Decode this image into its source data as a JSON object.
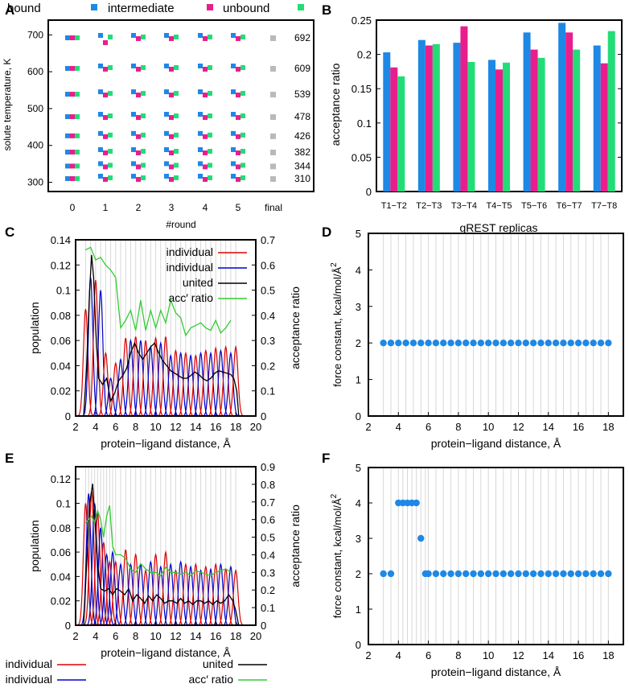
{
  "colors": {
    "blue": "#1e88e5",
    "magenta": "#e91e8c",
    "green": "#22dd77",
    "gray": "#b9b9b9",
    "red": "#dd0000",
    "darkblue": "#0000cc",
    "black": "#000000",
    "accgreen": "#33cc33",
    "grid": "#d7d7d7"
  },
  "chart_data": [
    {
      "panel": "A",
      "type": "scatter",
      "title": "",
      "legend": [
        "bound",
        "intermediate",
        "unbound"
      ],
      "xlabel": "#round",
      "ylabel": "solute temperature, K",
      "xticks": [
        "0",
        "1",
        "2",
        "3",
        "4",
        "5",
        "final"
      ],
      "yticks": [
        "300",
        "400",
        "500",
        "600",
        "700"
      ],
      "ylim": [
        275,
        740
      ],
      "temperatures": [
        310,
        344,
        382,
        426,
        478,
        539,
        609,
        692
      ],
      "final_labels": [
        "692",
        "609",
        "539",
        "478",
        "426",
        "382",
        "344",
        "310"
      ]
    },
    {
      "panel": "B",
      "type": "bar",
      "title": "",
      "categories": [
        "T1−T2",
        "T2−T3",
        "T3−T4",
        "T4−T5",
        "T5−T6",
        "T6−T7",
        "T7−T8"
      ],
      "series": [
        {
          "name": "bound",
          "values": [
            0.203,
            0.221,
            0.217,
            0.192,
            0.232,
            0.246,
            0.213
          ]
        },
        {
          "name": "intermediate",
          "values": [
            0.181,
            0.213,
            0.241,
            0.178,
            0.207,
            0.232,
            0.187
          ]
        },
        {
          "name": "unbound",
          "values": [
            0.168,
            0.215,
            0.189,
            0.188,
            0.195,
            0.207,
            0.234
          ]
        }
      ],
      "xlabel": "gREST replicas",
      "ylabel": "acceptance ratio",
      "ylim": [
        0,
        0.25
      ],
      "yticks": [
        "0",
        "0.05",
        "0.1",
        "0.15",
        "0.2",
        "0.25"
      ]
    },
    {
      "panel": "C",
      "type": "line",
      "xlabel": "protein−ligand distance, Å",
      "ylabel": "population",
      "y2label": "acceptance ratio",
      "xlim": [
        2,
        20
      ],
      "ylim": [
        0,
        0.14
      ],
      "y2lim": [
        0,
        0.7
      ],
      "xticks": [
        "2",
        "4",
        "6",
        "8",
        "10",
        "12",
        "14",
        "16",
        "18",
        "20"
      ],
      "yticks": [
        "0",
        "0.02",
        "0.04",
        "0.06",
        "0.08",
        "0.1",
        "0.12",
        "0.14"
      ],
      "y2ticks": [
        "0",
        "0.1",
        "0.2",
        "0.3",
        "0.4",
        "0.5",
        "0.6",
        "0.7"
      ],
      "legend": [
        "individual",
        "individual",
        "united",
        "acc′ ratio"
      ],
      "windows": [
        3.0,
        3.5,
        4.0,
        4.5,
        5.0,
        5.5,
        6.0,
        6.5,
        7.0,
        7.5,
        8.0,
        8.5,
        9.0,
        9.5,
        10.0,
        10.5,
        11.0,
        11.5,
        12.0,
        12.5,
        13.0,
        13.5,
        14.0,
        14.5,
        15.0,
        15.5,
        16.0,
        16.5,
        17.0,
        17.5,
        18.0
      ],
      "peak_heights": [
        0.085,
        0.11,
        0.108,
        0.1,
        0.05,
        0.03,
        0.042,
        0.045,
        0.062,
        0.06,
        0.063,
        0.06,
        0.06,
        0.055,
        0.062,
        0.058,
        0.063,
        0.048,
        0.052,
        0.05,
        0.05,
        0.048,
        0.048,
        0.05,
        0.052,
        0.05,
        0.054,
        0.052,
        0.055,
        0.05,
        0.055
      ],
      "united": {
        "x": [
          2.8,
          3.1,
          3.4,
          3.6,
          3.8,
          4.0,
          4.3,
          4.7,
          5.1,
          5.5,
          5.9,
          6.3,
          6.7,
          7.1,
          7.5,
          7.9,
          8.3,
          8.7,
          9.1,
          9.5,
          9.9,
          10.3,
          10.7,
          11.1,
          11.5,
          11.9,
          12.3,
          12.7,
          13.1,
          13.5,
          13.9,
          14.3,
          14.7,
          15.1,
          15.5,
          15.9,
          16.3,
          16.7,
          17.1,
          17.5,
          17.8,
          18.1,
          18.3
        ],
        "y": [
          0.0,
          0.04,
          0.1,
          0.128,
          0.11,
          0.07,
          0.03,
          0.025,
          0.03,
          0.012,
          0.018,
          0.028,
          0.032,
          0.038,
          0.05,
          0.058,
          0.05,
          0.045,
          0.05,
          0.055,
          0.058,
          0.05,
          0.044,
          0.04,
          0.036,
          0.034,
          0.032,
          0.03,
          0.03,
          0.032,
          0.035,
          0.033,
          0.03,
          0.028,
          0.03,
          0.034,
          0.036,
          0.035,
          0.034,
          0.033,
          0.03,
          0.02,
          0.0
        ]
      },
      "acc_ratio": {
        "x": [
          3.0,
          3.5,
          4.0,
          4.5,
          5.0,
          5.5,
          6.0,
          6.5,
          7.0,
          7.5,
          8.0,
          8.5,
          9.0,
          9.5,
          10.0,
          10.5,
          11.0,
          11.5,
          12.0,
          12.5,
          13.0,
          13.5,
          14.0,
          14.5,
          15.0,
          15.5,
          16.0,
          16.5,
          17.0,
          17.5
        ],
        "y": [
          0.66,
          0.67,
          0.62,
          0.63,
          0.6,
          0.58,
          0.55,
          0.35,
          0.38,
          0.42,
          0.34,
          0.46,
          0.34,
          0.42,
          0.35,
          0.42,
          0.37,
          0.46,
          0.41,
          0.39,
          0.32,
          0.35,
          0.36,
          0.37,
          0.35,
          0.34,
          0.38,
          0.33,
          0.35,
          0.38
        ]
      }
    },
    {
      "panel": "D",
      "type": "scatter",
      "xlabel": "protein−ligand distance, Å",
      "ylabel": "force constant, kcal/mol/Å",
      "ylabel_sup": "2",
      "xlim": [
        2,
        19
      ],
      "ylim": [
        0,
        5
      ],
      "xticks": [
        "2",
        "4",
        "6",
        "8",
        "10",
        "12",
        "14",
        "16",
        "18"
      ],
      "yticks": [
        "0",
        "1",
        "2",
        "3",
        "4",
        "5"
      ],
      "x": [
        3.0,
        3.5,
        4.0,
        4.5,
        5.0,
        5.5,
        6.0,
        6.5,
        7.0,
        7.5,
        8.0,
        8.5,
        9.0,
        9.5,
        10.0,
        10.5,
        11.0,
        11.5,
        12.0,
        12.5,
        13.0,
        13.5,
        14.0,
        14.5,
        15.0,
        15.5,
        16.0,
        16.5,
        17.0,
        17.5,
        18.0
      ],
      "y": [
        2,
        2,
        2,
        2,
        2,
        2,
        2,
        2,
        2,
        2,
        2,
        2,
        2,
        2,
        2,
        2,
        2,
        2,
        2,
        2,
        2,
        2,
        2,
        2,
        2,
        2,
        2,
        2,
        2,
        2,
        2
      ]
    },
    {
      "panel": "E",
      "type": "line",
      "xlabel": "protein−ligand distance, Å",
      "ylabel": "population",
      "y2label": "acceptance ratio",
      "xlim": [
        2,
        20
      ],
      "ylim": [
        0,
        0.13
      ],
      "y2lim": [
        0,
        0.9
      ],
      "xticks": [
        "2",
        "4",
        "6",
        "8",
        "10",
        "12",
        "14",
        "16",
        "18",
        "20"
      ],
      "yticks": [
        "0",
        "0.02",
        "0.04",
        "0.06",
        "0.08",
        "0.1",
        "0.12"
      ],
      "y2ticks": [
        "0",
        "0.1",
        "0.2",
        "0.3",
        "0.4",
        "0.5",
        "0.6",
        "0.7",
        "0.8",
        "0.9"
      ],
      "legend": [
        "individual",
        "individual",
        "united",
        "acc′ ratio"
      ],
      "windows": [
        3.0,
        3.3,
        3.6,
        3.9,
        4.2,
        4.5,
        4.8,
        5.1,
        5.4,
        5.7,
        6.0,
        6.5,
        7.0,
        7.5,
        8.0,
        8.5,
        9.0,
        9.5,
        10.0,
        10.5,
        11.0,
        11.5,
        12.0,
        12.5,
        13.0,
        13.5,
        14.0,
        14.5,
        15.0,
        15.5,
        16.0,
        16.5,
        17.0,
        17.5,
        18.0
      ],
      "peak_heights": [
        0.1,
        0.108,
        0.11,
        0.1,
        0.092,
        0.08,
        0.068,
        0.058,
        0.052,
        0.06,
        0.052,
        0.05,
        0.062,
        0.05,
        0.058,
        0.05,
        0.045,
        0.052,
        0.058,
        0.048,
        0.06,
        0.05,
        0.045,
        0.052,
        0.05,
        0.048,
        0.05,
        0.045,
        0.048,
        0.046,
        0.05,
        0.05,
        0.046,
        0.048,
        0.045
      ],
      "united": {
        "x": [
          2.8,
          3.1,
          3.4,
          3.7,
          3.9,
          4.2,
          4.5,
          4.9,
          5.3,
          5.7,
          6.1,
          6.5,
          6.9,
          7.3,
          7.7,
          8.1,
          8.5,
          8.9,
          9.3,
          9.7,
          10.1,
          10.5,
          10.9,
          11.3,
          11.7,
          12.1,
          12.5,
          12.9,
          13.3,
          13.7,
          14.1,
          14.5,
          14.9,
          15.3,
          15.7,
          16.1,
          16.5,
          16.9,
          17.3,
          17.7,
          18.0,
          18.3
        ],
        "y": [
          0.0,
          0.05,
          0.1,
          0.116,
          0.09,
          0.05,
          0.03,
          0.028,
          0.03,
          0.025,
          0.03,
          0.028,
          0.025,
          0.03,
          0.02,
          0.025,
          0.022,
          0.018,
          0.024,
          0.02,
          0.025,
          0.022,
          0.018,
          0.02,
          0.02,
          0.018,
          0.022,
          0.018,
          0.02,
          0.017,
          0.02,
          0.02,
          0.018,
          0.02,
          0.017,
          0.02,
          0.018,
          0.02,
          0.025,
          0.02,
          0.012,
          0.0
        ]
      },
      "acc_ratio": {
        "x": [
          3.0,
          3.3,
          3.6,
          3.9,
          4.2,
          4.5,
          4.8,
          5.1,
          5.4,
          5.7,
          6.0,
          6.5,
          7.0,
          7.5,
          8.0,
          8.5,
          9.0,
          9.5,
          10.0,
          10.5,
          11.0,
          11.5,
          12.0,
          12.5,
          13.0,
          13.5,
          14.0,
          14.5,
          15.0,
          15.5,
          16.0,
          16.5,
          17.0,
          17.5
        ],
        "y": [
          0.58,
          0.6,
          0.62,
          0.58,
          0.65,
          0.6,
          0.5,
          0.62,
          0.68,
          0.45,
          0.4,
          0.4,
          0.38,
          0.32,
          0.3,
          0.35,
          0.32,
          0.3,
          0.3,
          0.28,
          0.33,
          0.3,
          0.3,
          0.29,
          0.3,
          0.28,
          0.31,
          0.3,
          0.29,
          0.28,
          0.3,
          0.31,
          0.32,
          0.3
        ]
      }
    },
    {
      "panel": "F",
      "type": "scatter",
      "xlabel": "protein−ligand distance, Å",
      "ylabel": "force constant, kcal/mol/Å",
      "ylabel_sup": "2",
      "xlim": [
        2,
        19
      ],
      "ylim": [
        0,
        5
      ],
      "xticks": [
        "2",
        "4",
        "6",
        "8",
        "10",
        "12",
        "14",
        "16",
        "18"
      ],
      "yticks": [
        "0",
        "1",
        "2",
        "3",
        "4",
        "5"
      ],
      "x": [
        3.0,
        3.5,
        4.0,
        4.3,
        4.6,
        4.9,
        5.2,
        5.5,
        5.8,
        6.0,
        6.5,
        7.0,
        7.5,
        8.0,
        8.5,
        9.0,
        9.5,
        10.0,
        10.5,
        11.0,
        11.5,
        12.0,
        12.5,
        13.0,
        13.5,
        14.0,
        14.5,
        15.0,
        15.5,
        16.0,
        16.5,
        17.0,
        17.5,
        18.0
      ],
      "y": [
        2,
        2,
        4,
        4,
        4,
        4,
        4,
        3,
        2,
        2,
        2,
        2,
        2,
        2,
        2,
        2,
        2,
        2,
        2,
        2,
        2,
        2,
        2,
        2,
        2,
        2,
        2,
        2,
        2,
        2,
        2,
        2,
        2,
        2
      ]
    }
  ],
  "panel_labels": [
    "A",
    "B",
    "C",
    "D",
    "E",
    "F"
  ]
}
